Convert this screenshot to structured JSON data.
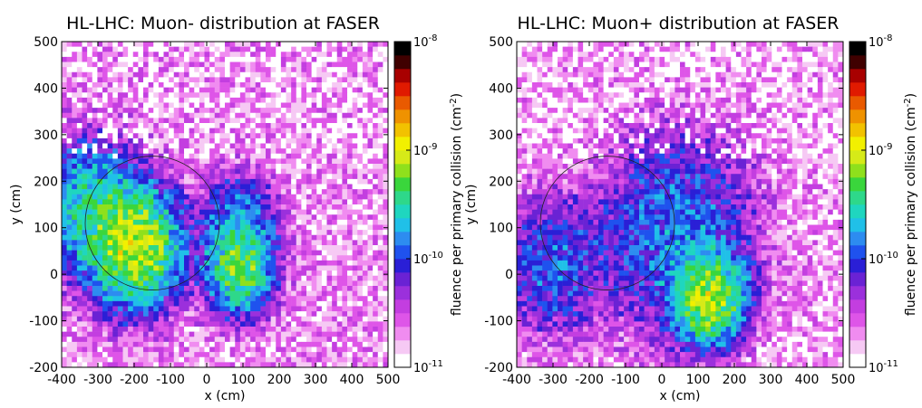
{
  "colors": {
    "background": "#ffffff",
    "colormap": [
      "#ffffff",
      "#f6c9f4",
      "#f08cf0",
      "#de55e8",
      "#c33ee0",
      "#9b30dc",
      "#6a22d4",
      "#2a1fd6",
      "#1f52ee",
      "#2d8cf0",
      "#20c0e8",
      "#1fd6bf",
      "#2ed88a",
      "#3ad63c",
      "#8fe01c",
      "#d6ea18",
      "#f2f000",
      "#f2c200",
      "#ef9200",
      "#e95a00",
      "#e01a00",
      "#a80000",
      "#400000",
      "#000000"
    ]
  },
  "chart_data": [
    {
      "type": "heatmap",
      "title": "HL-LHC: Muon- distribution at FASER",
      "xlabel": "x (cm)",
      "ylabel": "y (cm)",
      "xlim": [
        -400,
        500
      ],
      "ylim": [
        -200,
        500
      ],
      "xticks": [
        "-400",
        "-300",
        "-200",
        "-100",
        "0",
        "100",
        "200",
        "300",
        "400",
        "500"
      ],
      "yticks": [
        "-200",
        "-100",
        "0",
        "100",
        "200",
        "300",
        "400",
        "500"
      ],
      "colorbar": {
        "label": "fluence per primary collision (cm",
        "label_sup": "-2",
        "label_end": ")",
        "scale": "log",
        "range": [
          1e-11,
          1e-08
        ],
        "ticks": [
          {
            "value": 1e-08,
            "base": "10",
            "exp": "-8"
          },
          {
            "value": 1e-09,
            "base": "10",
            "exp": "-9"
          },
          {
            "value": 1e-10,
            "base": "10",
            "exp": "-10"
          },
          {
            "value": 1e-11,
            "base": "10",
            "exp": "-11"
          }
        ]
      },
      "hotspots": [
        {
          "x": -200,
          "y": 60,
          "log10_fluence": -9.1,
          "spread": 95
        },
        {
          "x": 90,
          "y": 10,
          "log10_fluence": -9.3,
          "spread": 70
        },
        {
          "x": 90,
          "y": 110,
          "log10_fluence": -9.8,
          "spread": 80
        },
        {
          "x": -330,
          "y": 150,
          "log10_fluence": -9.6,
          "spread": 110
        }
      ],
      "background_log10_fluence": -10.7,
      "overlay_circle": {
        "center_x": -150,
        "center_y": 110,
        "radius": 185
      }
    },
    {
      "type": "heatmap",
      "title": "HL-LHC: Muon+ distribution at FASER",
      "xlabel": "x (cm)",
      "ylabel": "y (cm)",
      "xlim": [
        -400,
        500
      ],
      "ylim": [
        -200,
        500
      ],
      "xticks": [
        "-400",
        "-300",
        "-200",
        "-100",
        "0",
        "100",
        "200",
        "300",
        "400",
        "500"
      ],
      "yticks": [
        "-200",
        "-100",
        "0",
        "100",
        "200",
        "300",
        "400",
        "500"
      ],
      "colorbar": {
        "label": "fluence per primary collision (cm",
        "label_sup": "-2",
        "label_end": ")",
        "scale": "log",
        "range": [
          1e-11,
          1e-08
        ],
        "ticks": [
          {
            "value": 1e-08,
            "base": "10",
            "exp": "-8"
          },
          {
            "value": 1e-09,
            "base": "10",
            "exp": "-9"
          },
          {
            "value": 1e-10,
            "base": "10",
            "exp": "-10"
          },
          {
            "value": 1e-11,
            "base": "10",
            "exp": "-11"
          }
        ]
      },
      "hotspots": [
        {
          "x": 130,
          "y": -50,
          "log10_fluence": -9.15,
          "spread": 75
        },
        {
          "x": 40,
          "y": 90,
          "log10_fluence": -9.9,
          "spread": 170
        },
        {
          "x": -300,
          "y": 20,
          "log10_fluence": -10.0,
          "spread": 120
        }
      ],
      "background_log10_fluence": -10.75,
      "overlay_circle": {
        "center_x": -150,
        "center_y": 110,
        "radius": 185
      }
    }
  ]
}
